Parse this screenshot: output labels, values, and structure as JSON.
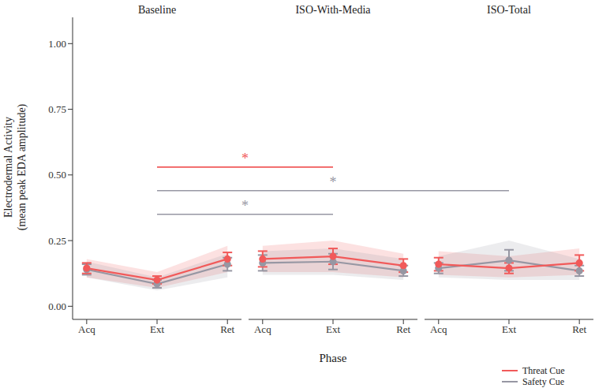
{
  "chart_data": {
    "type": "line",
    "x_label": "Phase",
    "y_label": [
      "Electrodermal Activity",
      "(mean peak EDA amplitude)"
    ],
    "ylim": [
      -0.05,
      1.1
    ],
    "yticks": [
      {
        "value": 0,
        "label": "0.00"
      },
      {
        "value": 0.25,
        "label": "0.25"
      },
      {
        "value": 0.5,
        "label": "0.50"
      },
      {
        "value": 0.75,
        "label": "0.75"
      },
      {
        "value": 1,
        "label": "1.00"
      }
    ],
    "legend": "bottom right",
    "facets": [
      {
        "title": "Baseline",
        "categories": [
          "Acq",
          "Ext",
          "Ret"
        ],
        "series": [
          {
            "name": "Threat Cue",
            "color": "#f15a5a",
            "marker": "circle",
            "values": [
              0.145,
              0.1,
              0.18
            ],
            "errors": [
              0.02,
              0.015,
              0.025
            ],
            "band_lower": [
              0.11,
              0.07,
              0.13
            ],
            "band_upper": [
              0.18,
              0.13,
              0.23
            ]
          },
          {
            "name": "Safety Cue",
            "color": "#9797a3",
            "marker": "circle",
            "values": [
              0.14,
              0.085,
              0.16
            ],
            "errors": [
              0.02,
              0.015,
              0.025
            ],
            "band_lower": [
              0.11,
              0.06,
              0.11
            ],
            "band_upper": [
              0.17,
              0.11,
              0.2
            ]
          }
        ]
      },
      {
        "title": "ISO-With-Media",
        "categories": [
          "Acq",
          "Ext",
          "Ret"
        ],
        "series": [
          {
            "name": "Threat Cue",
            "color": "#f15a5a",
            "marker": "circle",
            "values": [
              0.18,
              0.19,
              0.155
            ],
            "errors": [
              0.03,
              0.03,
              0.025
            ],
            "band_lower": [
              0.13,
              0.13,
              0.11
            ],
            "band_upper": [
              0.23,
              0.25,
              0.2
            ]
          },
          {
            "name": "Safety Cue",
            "color": "#9797a3",
            "marker": "circle",
            "values": [
              0.165,
              0.17,
              0.135
            ],
            "errors": [
              0.03,
              0.03,
              0.02
            ],
            "band_lower": [
              0.12,
              0.12,
              0.1
            ],
            "band_upper": [
              0.21,
              0.22,
              0.18
            ]
          }
        ]
      },
      {
        "title": "ISO-Total",
        "categories": [
          "Acq",
          "Ext",
          "Ret"
        ],
        "series": [
          {
            "name": "Threat Cue",
            "color": "#f15a5a",
            "marker": "circle",
            "values": [
              0.16,
              0.145,
              0.165
            ],
            "errors": [
              0.025,
              0.02,
              0.03
            ],
            "band_lower": [
              0.12,
              0.11,
              0.12
            ],
            "band_upper": [
              0.21,
              0.19,
              0.22
            ]
          },
          {
            "name": "Safety Cue",
            "color": "#9797a3",
            "marker": "circle",
            "values": [
              0.145,
              0.175,
              0.135
            ],
            "errors": [
              0.02,
              0.04,
              0.02
            ],
            "band_lower": [
              0.11,
              0.1,
              0.1
            ],
            "band_upper": [
              0.19,
              0.25,
              0.18
            ]
          }
        ]
      }
    ],
    "annotations": [
      {
        "label": "*",
        "color": "#f15a5a",
        "y": 0.53,
        "from": {
          "facet": "Baseline",
          "category": "Ext"
        },
        "to": {
          "facet": "ISO-With-Media",
          "category": "Ext"
        }
      },
      {
        "label": "*",
        "color": "#9797a3",
        "y": 0.44,
        "from": {
          "facet": "Baseline",
          "category": "Ext"
        },
        "to": {
          "facet": "ISO-Total",
          "category": "Ext"
        }
      },
      {
        "label": "*",
        "color": "#9797a3",
        "y": 0.35,
        "from": {
          "facet": "Baseline",
          "category": "Ext"
        },
        "to": {
          "facet": "ISO-With-Media",
          "category": "Ext"
        }
      }
    ]
  }
}
